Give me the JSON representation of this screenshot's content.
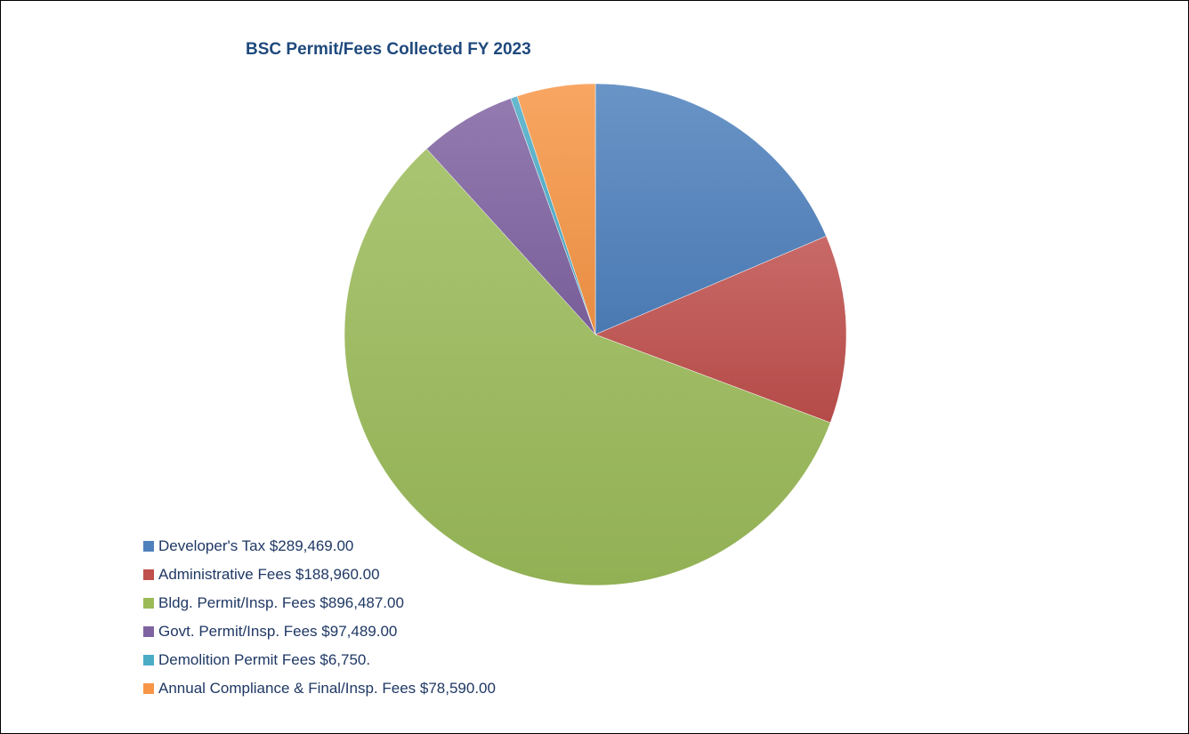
{
  "chart_data": {
    "type": "pie",
    "title": "BSC Permit/Fees Collected FY 2023",
    "legend_position": "bottom-left",
    "slices": [
      {
        "label": "Developer's Tax $289,469.00",
        "value": 289469.0,
        "color": "#4f81bd"
      },
      {
        "label": "Administrative Fees $188,960.00",
        "value": 188960.0,
        "color": "#c0504d"
      },
      {
        "label": "Bldg. Permit/Insp. Fees $896,487.00",
        "value": 896487.0,
        "color": "#9bbb59"
      },
      {
        "label": "Govt. Permit/Insp. Fees $97,489.00",
        "value": 97489.0,
        "color": "#8064a2"
      },
      {
        "label": "Demolition Permit Fees $6,750.",
        "value": 6750,
        "color": "#4bacc6"
      },
      {
        "label": "Annual Compliance & Final/Insp. Fees $78,590.00",
        "value": 78590.0,
        "color": "#f79646"
      }
    ]
  }
}
